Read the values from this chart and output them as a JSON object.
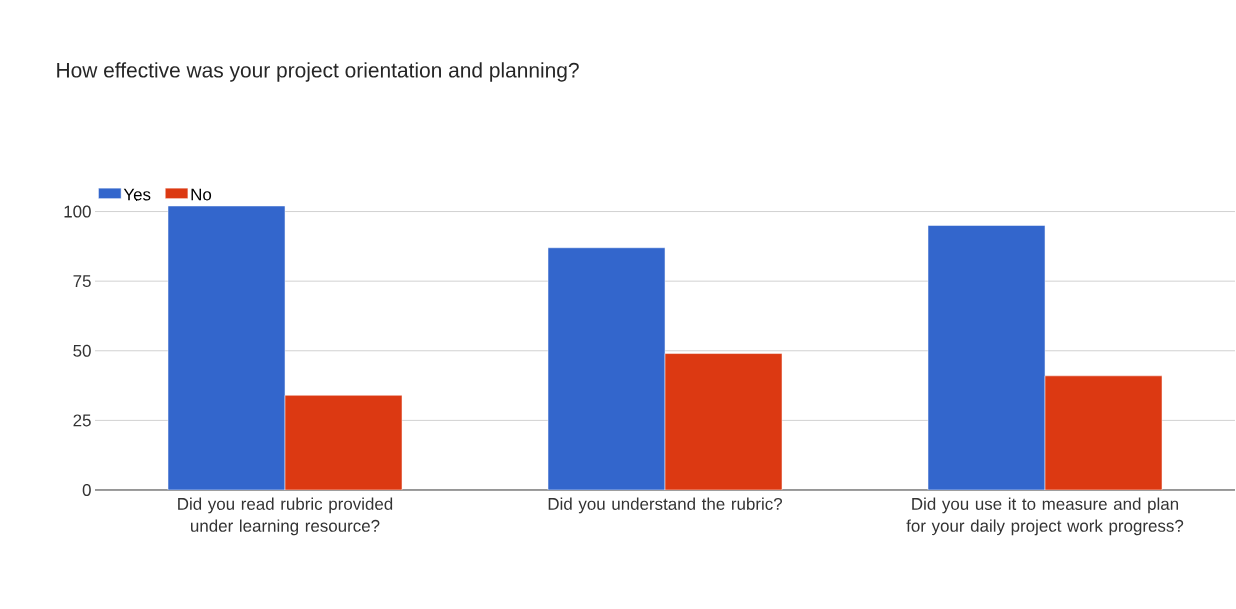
{
  "chart_data": {
    "type": "bar",
    "title": "How effective was your project orientation and planning?",
    "categories": [
      "Did you read rubric provided under learning resource?",
      "Did you understand the rubric?",
      "Did you use it to measure and plan for your daily project work progress?"
    ],
    "series": [
      {
        "name": "Yes",
        "color": "#3366cc",
        "values": [
          102,
          87,
          95
        ]
      },
      {
        "name": "No",
        "color": "#dc3912",
        "values": [
          34,
          49,
          41
        ]
      }
    ],
    "ylim": [
      0,
      102
    ],
    "yticks": [
      0,
      25,
      50,
      75,
      100
    ],
    "grid": "y",
    "legend": "top left"
  }
}
